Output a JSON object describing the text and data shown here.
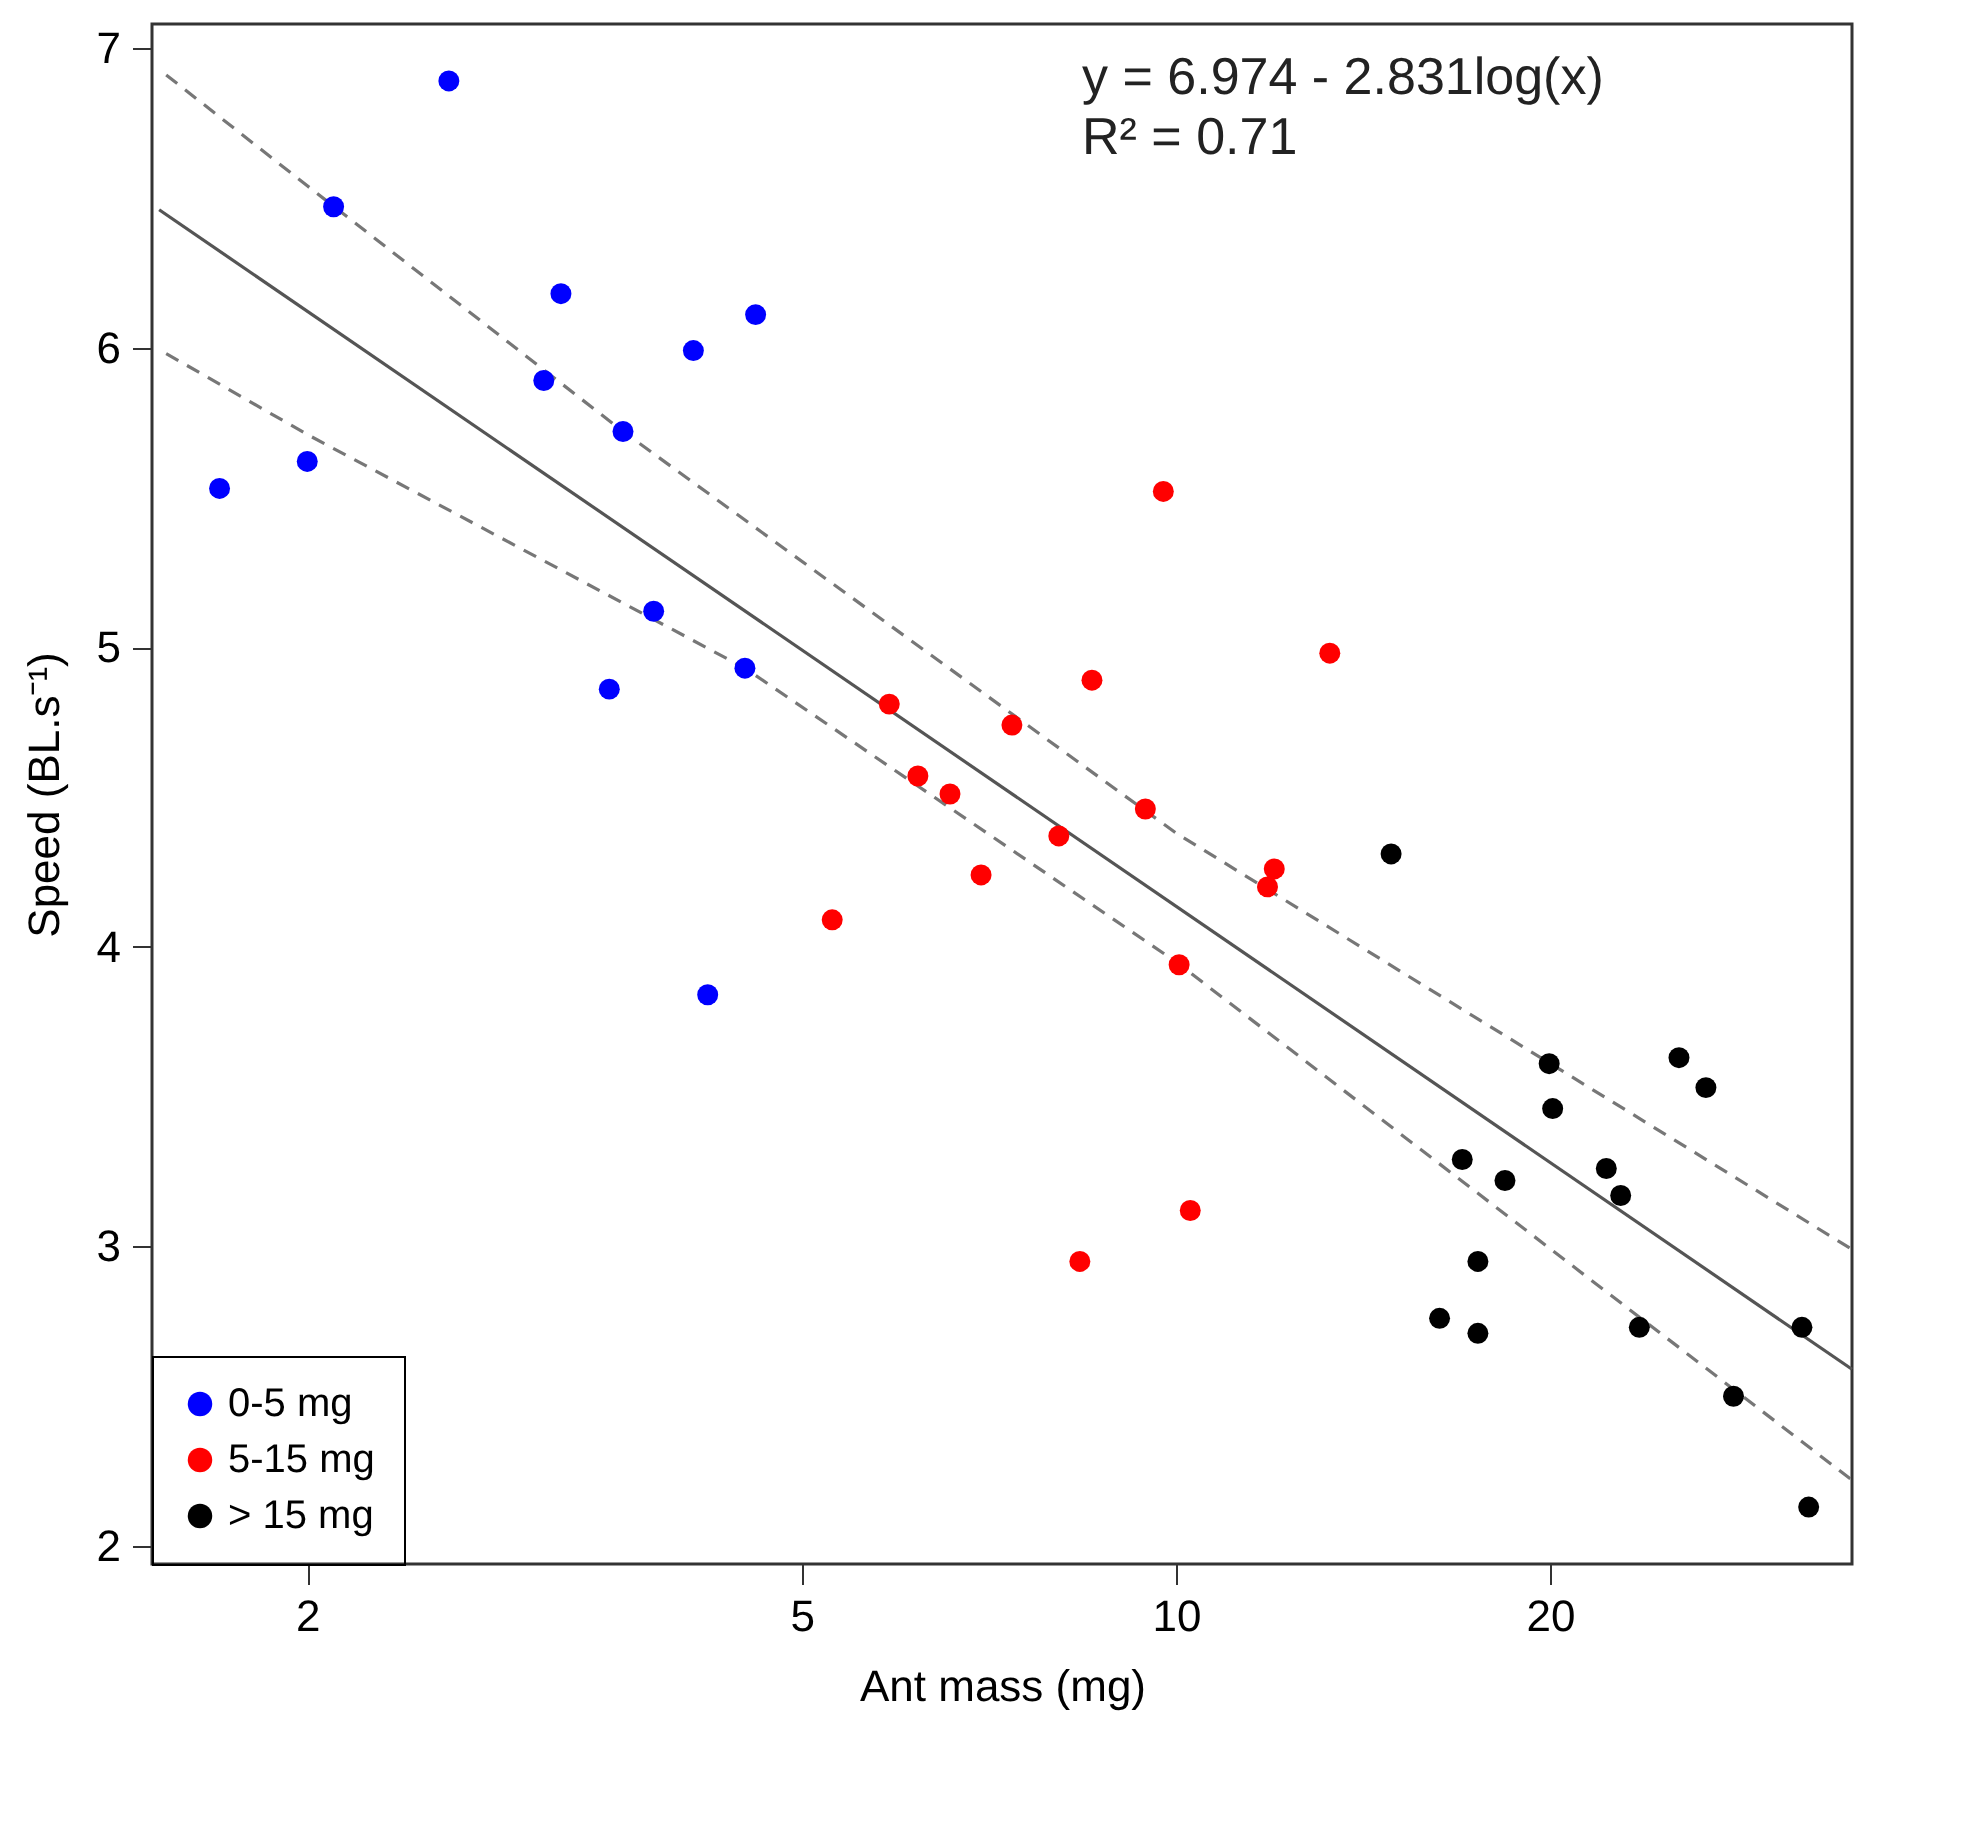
{
  "chart_data": {
    "type": "scatter",
    "xlabel": "Ant mass (mg)",
    "ylabel": "Speed (BL.s⁻¹)",
    "log": "x",
    "xlim": [
      1.5,
      35
    ],
    "xticks": [
      2,
      5,
      10,
      20
    ],
    "ylim": [
      1.94,
      7.08
    ],
    "yticks": [
      2,
      3,
      4,
      5,
      6,
      7
    ],
    "grid": false,
    "legend": "bottom left",
    "marker": "circle",
    "annotations": [
      "y = 6.974 - 2.831log(x)",
      "R² = 0.71"
    ],
    "series": [
      {
        "name": "0-5 mg",
        "color": "#0000ff",
        "x": [
          2.6,
          2.1,
          3.2,
          4.59,
          4.09,
          3.1,
          3.59,
          2.0,
          1.7,
          3.8,
          4.5,
          3.5,
          4.2
        ],
        "values": [
          6.89,
          6.47,
          6.18,
          6.11,
          5.99,
          5.89,
          5.72,
          5.62,
          5.53,
          5.12,
          4.93,
          4.86,
          3.84
        ]
      },
      {
        "name": "5-15 mg",
        "color": "#ff0000",
        "x": [
          9.77,
          13.3,
          8.56,
          5.88,
          7.38,
          6.2,
          6.58,
          9.45,
          8.05,
          6.97,
          5.29,
          12.0,
          11.85,
          10.06,
          10.27,
          8.37
        ],
        "values": [
          5.52,
          4.98,
          4.89,
          4.81,
          4.74,
          4.57,
          4.51,
          4.46,
          4.37,
          4.24,
          4.09,
          4.26,
          4.2,
          3.94,
          3.12,
          2.95
        ]
      },
      {
        "name": "> 15 mg",
        "color": "#000000",
        "x": [
          14.9,
          19.97,
          25.4,
          26.7,
          20.1,
          17.0,
          22.2,
          18.4,
          22.8,
          17.5,
          16.3,
          17.5,
          23.6,
          31.9,
          28.1,
          32.3
        ],
        "values": [
          4.31,
          3.61,
          3.63,
          3.53,
          3.46,
          3.29,
          3.26,
          3.22,
          3.17,
          2.95,
          2.76,
          2.71,
          2.73,
          2.73,
          2.5,
          2.13
        ]
      },
      {
        "type": "line",
        "marker": "none",
        "line_style": "solid",
        "color": "#555555",
        "x": [
          1.52,
          35
        ],
        "values": [
          6.46,
          2.59
        ]
      },
      {
        "type": "line",
        "marker": "none",
        "line_style": "dashed",
        "color": "#777777",
        "x": [
          1.54,
          2.0,
          3.59,
          10,
          35
        ],
        "values": [
          6.91,
          6.54,
          5.72,
          4.38,
          2.99
        ]
      },
      {
        "type": "line",
        "marker": "none",
        "line_style": "dashed",
        "color": "#777777",
        "x": [
          1.54,
          2.0,
          4.5,
          10,
          35
        ],
        "values": [
          5.98,
          5.71,
          4.93,
          3.95,
          2.22
        ]
      }
    ]
  }
}
